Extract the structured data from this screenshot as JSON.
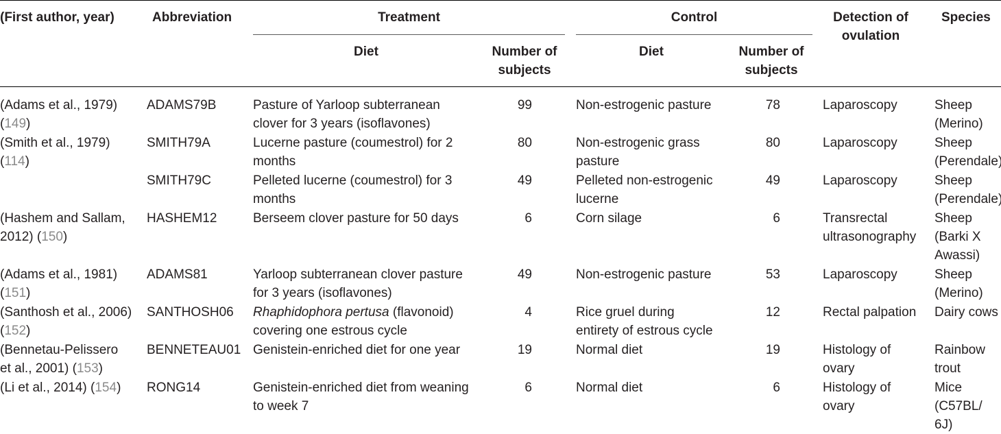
{
  "headers": {
    "author": "(First author, year)",
    "abbreviation": "Abbreviation",
    "treatment": "Treatment",
    "control": "Control",
    "treatment_diet": "Diet",
    "treatment_n_line1": "Number of",
    "treatment_n_line2": "subjects",
    "control_diet": "Diet",
    "control_n_line1": "Number of",
    "control_n_line2": "subjects",
    "detection_line1": "Detection of",
    "detection_line2": "ovulation",
    "species": "Species"
  },
  "rows": [
    {
      "author": [
        "(Adams et al., 1979)",
        ""
      ],
      "ref": "149",
      "abbr": "ADAMS79B",
      "t_diet": [
        "Pasture of Yarloop subterranean",
        "clover for 3 years (isoflavones)"
      ],
      "t_n": "99",
      "c_diet": [
        "Non-estrogenic pasture",
        ""
      ],
      "c_n": "78",
      "detection": [
        "Laparoscopy",
        ""
      ],
      "species": [
        "Sheep",
        "(Merino)",
        ""
      ]
    },
    {
      "author": [
        "(Smith et al., 1979)",
        ""
      ],
      "ref": "114",
      "abbr": "SMITH79A",
      "t_diet": [
        "Lucerne pasture (coumestrol) for 2",
        "months"
      ],
      "t_n": "80",
      "c_diet": [
        "Non-estrogenic grass",
        "pasture"
      ],
      "c_n": "80",
      "detection": [
        "Laparoscopy",
        ""
      ],
      "species": [
        "Sheep",
        "(Perendale)",
        ""
      ]
    },
    {
      "author": [
        "",
        ""
      ],
      "ref": "",
      "abbr": "SMITH79C",
      "t_diet": [
        "Pelleted lucerne (coumestrol) for 3",
        "months"
      ],
      "t_n": "49",
      "c_diet": [
        "Pelleted non-estrogenic",
        "lucerne"
      ],
      "c_n": "49",
      "detection": [
        "Laparoscopy",
        ""
      ],
      "species": [
        "Sheep",
        "(Perendale)",
        ""
      ]
    },
    {
      "author": [
        "(Hashem and Sallam,",
        "2012) "
      ],
      "ref": "150",
      "abbr": "HASHEM12",
      "t_diet": [
        "Berseem clover pasture for 50 days",
        ""
      ],
      "t_n": "6",
      "c_diet": [
        "Corn silage",
        ""
      ],
      "c_n": "6",
      "detection": [
        "Transrectal",
        "ultrasonography"
      ],
      "species": [
        "Sheep",
        "(Barki X",
        "Awassi)"
      ]
    },
    {
      "author": [
        "(Adams et al., 1981)",
        ""
      ],
      "ref": "151",
      "abbr": "ADAMS81",
      "t_diet": [
        "Yarloop subterranean clover pasture",
        "for 3 years (isoflavones)"
      ],
      "t_n": "49",
      "c_diet": [
        "Non-estrogenic pasture",
        ""
      ],
      "c_n": "53",
      "detection": [
        "Laparoscopy",
        ""
      ],
      "species": [
        "Sheep",
        "(Merino)",
        ""
      ]
    },
    {
      "author": [
        "(Santhosh et al., 2006)",
        ""
      ],
      "ref": "152",
      "abbr": "SANTHOSH06",
      "t_diet_italic": "Rhaphidophora pertusa",
      "t_diet": [
        " (flavonoid)",
        "covering one estrous cycle"
      ],
      "t_n": "4",
      "c_diet": [
        "Rice gruel during",
        "entirety of estrous cycle"
      ],
      "c_n": "12",
      "detection": [
        "Rectal palpation",
        ""
      ],
      "species": [
        "Dairy cows",
        "",
        ""
      ]
    },
    {
      "author": [
        "(Bennetau-Pelissero",
        "et al., 2001) "
      ],
      "ref": "153",
      "abbr": "BENNETEAU01",
      "t_diet": [
        "Genistein-enriched diet for one year",
        ""
      ],
      "t_n": "19",
      "c_diet": [
        "Normal diet",
        ""
      ],
      "c_n": "19",
      "detection": [
        "Histology of",
        "ovary"
      ],
      "species": [
        "Rainbow",
        "trout",
        ""
      ]
    },
    {
      "author": [
        "(Li et al., 2014) ",
        ""
      ],
      "ref": "154",
      "abbr": "RONG14",
      "t_diet": [
        "Genistein-enriched diet from weaning",
        "to week 7"
      ],
      "t_n": "6",
      "c_diet": [
        "Normal diet",
        ""
      ],
      "c_n": "6",
      "detection": [
        "Histology of",
        "ovary"
      ],
      "species": [
        "Mice",
        "(C57BL/",
        "6J)"
      ]
    }
  ]
}
